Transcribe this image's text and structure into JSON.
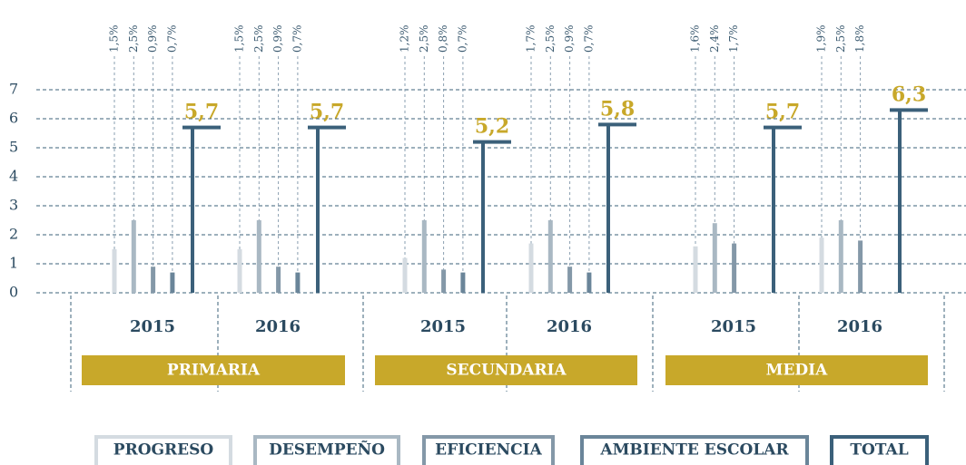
{
  "chart_data": {
    "type": "bar",
    "categories": [
      "2015",
      "2016",
      "2015",
      "2016",
      "2015",
      "2016"
    ],
    "groups": [
      "PRIMARIA",
      "SECUNDARIA",
      "MEDIA"
    ],
    "ylim": [
      0,
      7
    ],
    "yticks": [
      0,
      1,
      2,
      3,
      4,
      5,
      6,
      7
    ],
    "grid": true,
    "series": [
      {
        "name": "PROGRESO",
        "color": "#d4dbe1",
        "values": [
          1.5,
          1.5,
          1.2,
          1.7,
          1.6,
          1.9
        ],
        "value_labels": [
          "1,5%",
          "1,5%",
          "1,2%",
          "1,7%",
          "1,6%",
          "1,9%"
        ]
      },
      {
        "name": "DESEMPEÑO",
        "color": "#a9b8c3",
        "values": [
          2.5,
          2.5,
          2.5,
          2.5,
          2.4,
          2.5
        ],
        "value_labels": [
          "2,5%",
          "2,5%",
          "2,5%",
          "2,5%",
          "2,4%",
          "2,5%"
        ]
      },
      {
        "name": "EFICIENCIA",
        "color": "#8498a8",
        "values": [
          0.9,
          0.9,
          0.8,
          0.9,
          1.7,
          1.8
        ],
        "value_labels": [
          "0,9%",
          "0,9%",
          "0,8%",
          "0,9%",
          "1,7%",
          "1,8%"
        ]
      },
      {
        "name": "AMBIENTE ESCOLAR",
        "color": "#6a8599",
        "values": [
          0.7,
          0.7,
          0.7,
          0.7,
          null,
          null
        ],
        "value_labels": [
          "0,7%",
          "0,7%",
          "0,7%",
          "0,7%",
          null,
          null
        ]
      },
      {
        "name": "TOTAL",
        "color": "#3b607a",
        "values": [
          5.7,
          5.7,
          5.2,
          5.8,
          5.7,
          6.3
        ],
        "value_labels": [
          "5,7",
          "5,7",
          "5,2",
          "5,8",
          "5,7",
          "6,3"
        ]
      }
    ]
  }
}
